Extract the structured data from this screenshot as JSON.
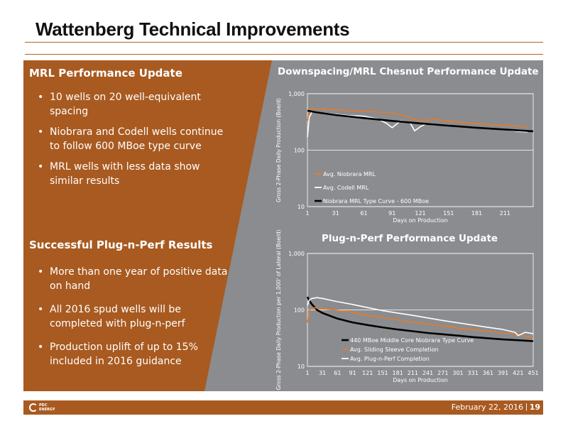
{
  "title": "Wattenberg Technical Improvements",
  "left": {
    "mrl_heading": "MRL Performance Update",
    "mrl_bullets": [
      "10 wells on 20 well-equivalent spacing",
      "Niobrara and Codell  wells continue to follow 600 MBoe type curve",
      "MRL wells with less data show similar results"
    ],
    "pnp_heading": "Successful Plug-n-Perf Results",
    "pnp_bullets": [
      "More than one year of positive data on hand",
      "All 2016 spud wells will be completed with plug-n-perf",
      "Production uplift of up to 15% included in 2016 guidance"
    ]
  },
  "chart_data": [
    {
      "type": "line",
      "title": "Downspacing/MRL Chesnut Performance Update",
      "xlabel": "Days on Production",
      "ylabel": "Gross 2-Phase Daily Production (Boe/d)",
      "yscale": "log",
      "ylim": [
        10,
        1000
      ],
      "xlim": [
        1,
        241
      ],
      "xticks": [
        "1",
        "31",
        "61",
        "91",
        "121",
        "151",
        "181",
        "211"
      ],
      "yticks": [
        "10",
        "100",
        "1,000"
      ],
      "legend": "bottom-left",
      "series": [
        {
          "name": "Avg. Niobrara MRL",
          "color": "#e87a2a",
          "x": [
            1,
            3,
            5,
            10,
            20,
            31,
            45,
            61,
            75,
            91,
            105,
            121,
            135,
            151,
            165,
            181,
            195,
            211,
            225,
            235
          ],
          "y": [
            330,
            520,
            560,
            540,
            530,
            520,
            500,
            490,
            475,
            460,
            400,
            330,
            350,
            330,
            310,
            295,
            285,
            275,
            265,
            255
          ]
        },
        {
          "name": "Avg. Codell MRL",
          "color": "#ffffff",
          "x": [
            1,
            3,
            6,
            10,
            20,
            31,
            45,
            61,
            75,
            85,
            91,
            100,
            110,
            115,
            121,
            127,
            135,
            151,
            165,
            181,
            195,
            211,
            225,
            235
          ],
          "y": [
            170,
            380,
            480,
            470,
            450,
            430,
            410,
            400,
            360,
            300,
            250,
            330,
            310,
            220,
            260,
            290,
            280,
            275,
            260,
            250,
            240,
            230,
            215,
            210
          ]
        },
        {
          "name": "Niobrara MRL Type Curve - 600 MBoe",
          "color": "#000000",
          "x": [
            1,
            10,
            31,
            61,
            91,
            121,
            151,
            181,
            211,
            241
          ],
          "y": [
            500,
            470,
            420,
            370,
            330,
            298,
            272,
            250,
            232,
            216
          ]
        }
      ]
    },
    {
      "type": "line",
      "title": "Plug-n-Perf Performance Update",
      "xlabel": "Days on Production",
      "ylabel": "Gross 2-Phase Daily Production per 1,000' of Lateral  (Boe/d)",
      "yscale": "log",
      "ylim": [
        10,
        1000
      ],
      "xlim": [
        1,
        451
      ],
      "xticks": [
        "1",
        "31",
        "61",
        "91",
        "121",
        "151",
        "181",
        "211",
        "241",
        "271",
        "301",
        "331",
        "361",
        "391",
        "421",
        "451"
      ],
      "yticks": [
        "10",
        "100",
        "1,000"
      ],
      "legend": "bottom-center",
      "series": [
        {
          "name": "440 MBoe Middle Core Niobrara Type Curve",
          "color": "#000000",
          "x": [
            1,
            5,
            10,
            20,
            31,
            61,
            91,
            121,
            151,
            181,
            211,
            241,
            271,
            301,
            331,
            361,
            391,
            421,
            451
          ],
          "y": [
            170,
            145,
            125,
            100,
            88,
            70,
            60,
            54,
            49,
            45,
            42,
            39,
            37,
            35,
            33,
            31.5,
            30,
            29,
            28
          ]
        },
        {
          "name": "Avg. Sliding Sleeve Completion",
          "color": "#e87a2a",
          "x": [
            1,
            5,
            10,
            20,
            31,
            61,
            91,
            121,
            151,
            181,
            211,
            241,
            271,
            301,
            331,
            361,
            391,
            421,
            435,
            451
          ],
          "y": [
            60,
            100,
            110,
            108,
            105,
            98,
            90,
            80,
            73,
            67,
            61,
            56,
            52,
            48,
            45,
            42,
            39,
            37,
            34,
            33
          ]
        },
        {
          "name": "Avg. Plug-n-Perf Completion",
          "color": "#ffffff",
          "x": [
            1,
            5,
            10,
            20,
            31,
            45,
            61,
            91,
            121,
            151,
            181,
            211,
            241,
            271,
            301,
            331,
            361,
            391,
            415,
            421,
            435,
            451
          ],
          "y": [
            120,
            150,
            160,
            165,
            160,
            150,
            140,
            125,
            110,
            97,
            88,
            80,
            72,
            65,
            59,
            54,
            49,
            45,
            40,
            35,
            40,
            38
          ]
        }
      ]
    }
  ],
  "footer": {
    "logo_line1": "PDC",
    "logo_line2": "ENERGY",
    "date": "February 22, 2016",
    "separator": "|",
    "page": "19"
  }
}
